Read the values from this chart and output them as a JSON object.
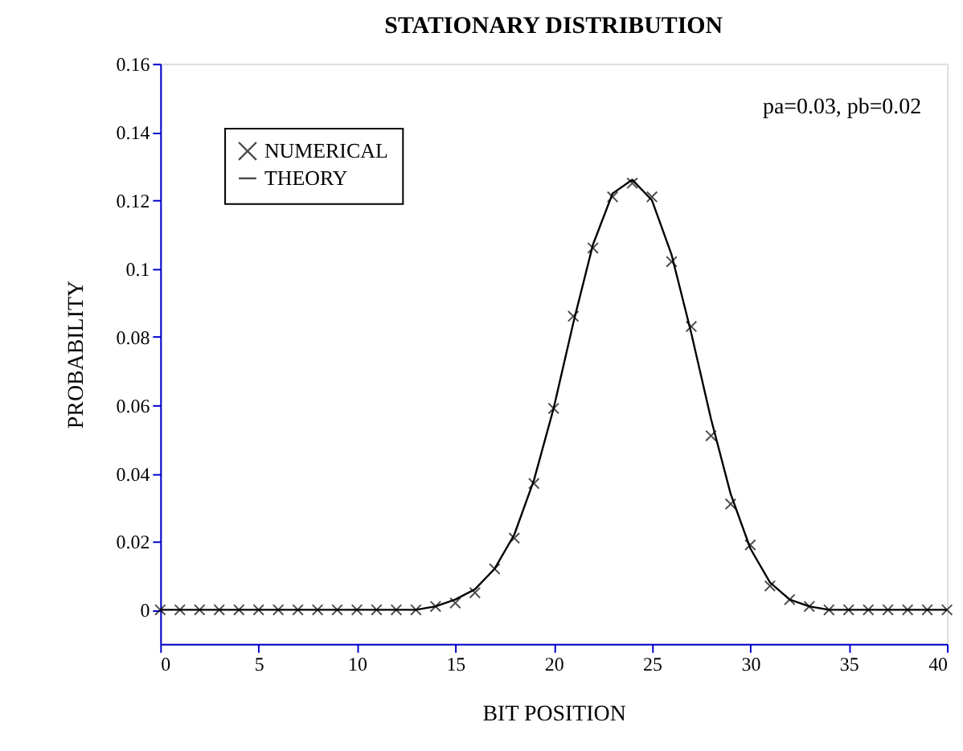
{
  "chart_data": {
    "type": "line",
    "title": "STATIONARY DISTRIBUTION",
    "xlabel": "BIT POSITION",
    "ylabel": "PROBABILITY",
    "annotations": [
      "pa=0.03, pb=0.02"
    ],
    "x": [
      0,
      1,
      2,
      3,
      4,
      5,
      6,
      7,
      8,
      9,
      10,
      11,
      12,
      13,
      14,
      15,
      16,
      17,
      18,
      19,
      20,
      21,
      22,
      23,
      24,
      25,
      26,
      27,
      28,
      29,
      30,
      31,
      32,
      33,
      34,
      35,
      36,
      37,
      38,
      39,
      40
    ],
    "series": [
      {
        "name": "NUMERICAL",
        "type": "scatter",
        "marker": "cross",
        "color": "#000000",
        "values": [
          0,
          0,
          0,
          0,
          0,
          0,
          0,
          0,
          0,
          0,
          0,
          0,
          0,
          0,
          0.001,
          0.002,
          0.005,
          0.012,
          0.021,
          0.037,
          0.059,
          0.086,
          0.106,
          0.121,
          0.125,
          0.121,
          0.102,
          0.083,
          0.051,
          0.031,
          0.019,
          0.007,
          0.003,
          0.001,
          0,
          0,
          0,
          0,
          0,
          0,
          0
        ]
      },
      {
        "name": "THEORY",
        "marker": "none",
        "line_style": "solid",
        "color": "#000000",
        "values": [
          0,
          0,
          0,
          0,
          0,
          0,
          0,
          0,
          0,
          0,
          0,
          0,
          0,
          0,
          0.001,
          0.003,
          0.006,
          0.012,
          0.022,
          0.038,
          0.059,
          0.084,
          0.107,
          0.122,
          0.126,
          0.12,
          0.104,
          0.081,
          0.056,
          0.034,
          0.018,
          0.008,
          0.003,
          0.001,
          0,
          0,
          0,
          0,
          0,
          0,
          0
        ]
      }
    ],
    "xlim": [
      0,
      40
    ],
    "xticks": [
      0,
      5,
      10,
      15,
      20,
      25,
      30,
      35,
      40
    ],
    "ylim": [
      -0.01,
      0.16
    ],
    "yticks": [
      0,
      0.02,
      0.04,
      0.06,
      0.08,
      0.1,
      0.12,
      0.14,
      0.16
    ],
    "grid": false,
    "legend": "top left"
  }
}
